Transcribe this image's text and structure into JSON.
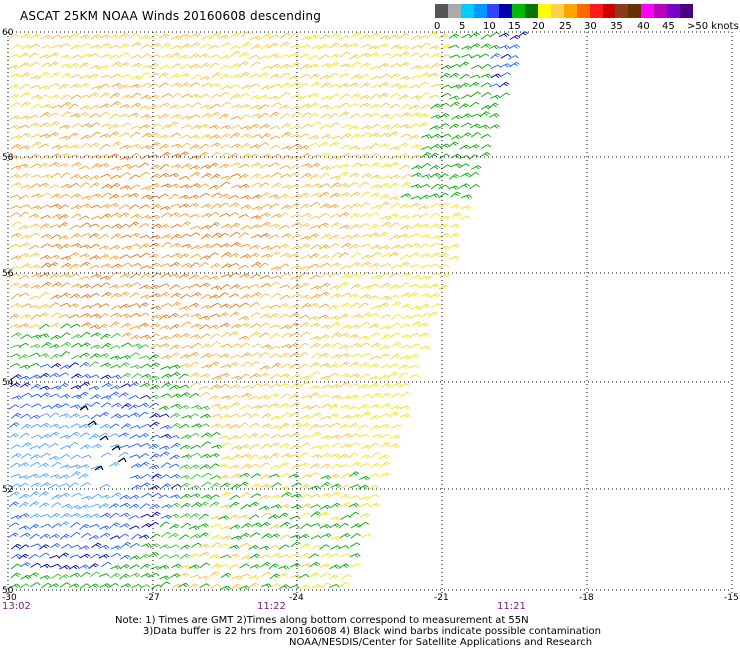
{
  "title": "ASCAT 25KM NOAA Winds 20160608 descending",
  "legend": {
    "colors": [
      "#555555",
      "#aaaaaa",
      "#00ccff",
      "#0099ff",
      "#3344ff",
      "#0000aa",
      "#00bb00",
      "#007700",
      "#ffff00",
      "#ffd24d",
      "#ffa500",
      "#ff6a00",
      "#ff1a1a",
      "#cc0000",
      "#8b3a1a",
      "#663300",
      "#ff00ff",
      "#bb00bb",
      "#7a00cc",
      "#4b0082"
    ],
    "labels": [
      "0",
      "5",
      "10",
      "15",
      "20",
      "25",
      "30",
      "35",
      "40",
      "45",
      ">50 knots"
    ]
  },
  "axes": {
    "lat_labels": [
      "60",
      "58",
      "56",
      "54",
      "52",
      "50"
    ],
    "lon_labels": [
      "-30",
      "-27",
      "-24",
      "-21",
      "-18",
      "-15"
    ],
    "time_labels": [
      "13:02",
      "11:22",
      "11:21"
    ]
  },
  "notes": {
    "line1": "Note: 1) Times are GMT 2)Times along bottom correspond to measurement at 55N",
    "line2": "3)Data buffer is 22 hrs from 20160608 4) Black wind barbs indicate possible contamination",
    "line3": "NOAA/NESDIS/Center for Satellite Applications and Research"
  },
  "wind_colors": {
    "calm_blue": "#4aa3ff",
    "mid_blue": "#1f5fff",
    "dark_blue": "#0000b4",
    "green": "#00a800",
    "light_green": "#34c234",
    "yellow": "#f5e21a",
    "light_orange": "#f7c542",
    "orange": "#f0a030",
    "dark_orange": "#e07a1a",
    "contaminated": "#000000"
  }
}
